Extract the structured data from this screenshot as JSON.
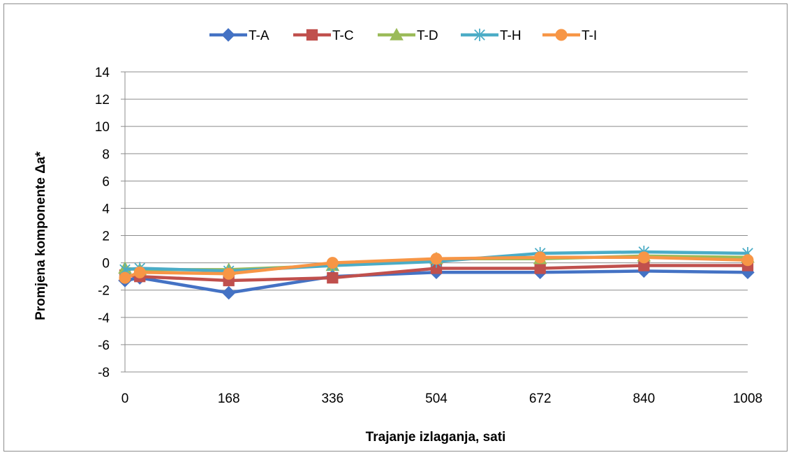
{
  "chart_data": {
    "type": "line",
    "xlabel": "Trajanje izlaganja, sati",
    "ylabel": "Promjena komponente Δa*",
    "x_ticks": [
      "0",
      "168",
      "336",
      "504",
      "672",
      "840",
      "1008"
    ],
    "y_ticks": [
      "-8",
      "-6",
      "-4",
      "-2",
      "0",
      "2",
      "4",
      "6",
      "8",
      "10",
      "12",
      "14"
    ],
    "ylim": [
      -8,
      14
    ],
    "grid": "horizontal",
    "legend_position": "top",
    "x": [
      0,
      24,
      168,
      336,
      504,
      672,
      840,
      1008
    ],
    "series": [
      {
        "name": "T-A",
        "color": "#4472C4",
        "marker": "diamond",
        "values": [
          -1.3,
          -1.1,
          -2.2,
          -1.0,
          -0.7,
          -0.7,
          -0.6,
          -0.7
        ]
      },
      {
        "name": "T-C",
        "color": "#C0504D",
        "marker": "square",
        "values": [
          -0.9,
          -1.0,
          -1.3,
          -1.1,
          -0.4,
          -0.4,
          -0.2,
          -0.2
        ]
      },
      {
        "name": "T-D",
        "color": "#9BBB59",
        "marker": "triangle",
        "values": [
          -0.4,
          -0.5,
          -0.5,
          -0.2,
          0.3,
          0.3,
          0.5,
          0.4
        ]
      },
      {
        "name": "T-H",
        "color": "#4BACC6",
        "marker": "asterisk",
        "values": [
          -0.5,
          -0.4,
          -0.6,
          -0.2,
          0.1,
          0.7,
          0.8,
          0.7
        ]
      },
      {
        "name": "T-I",
        "color": "#F79646",
        "marker": "circle",
        "values": [
          -1.1,
          -0.7,
          -0.8,
          0.0,
          0.3,
          0.4,
          0.4,
          0.2
        ]
      }
    ]
  }
}
